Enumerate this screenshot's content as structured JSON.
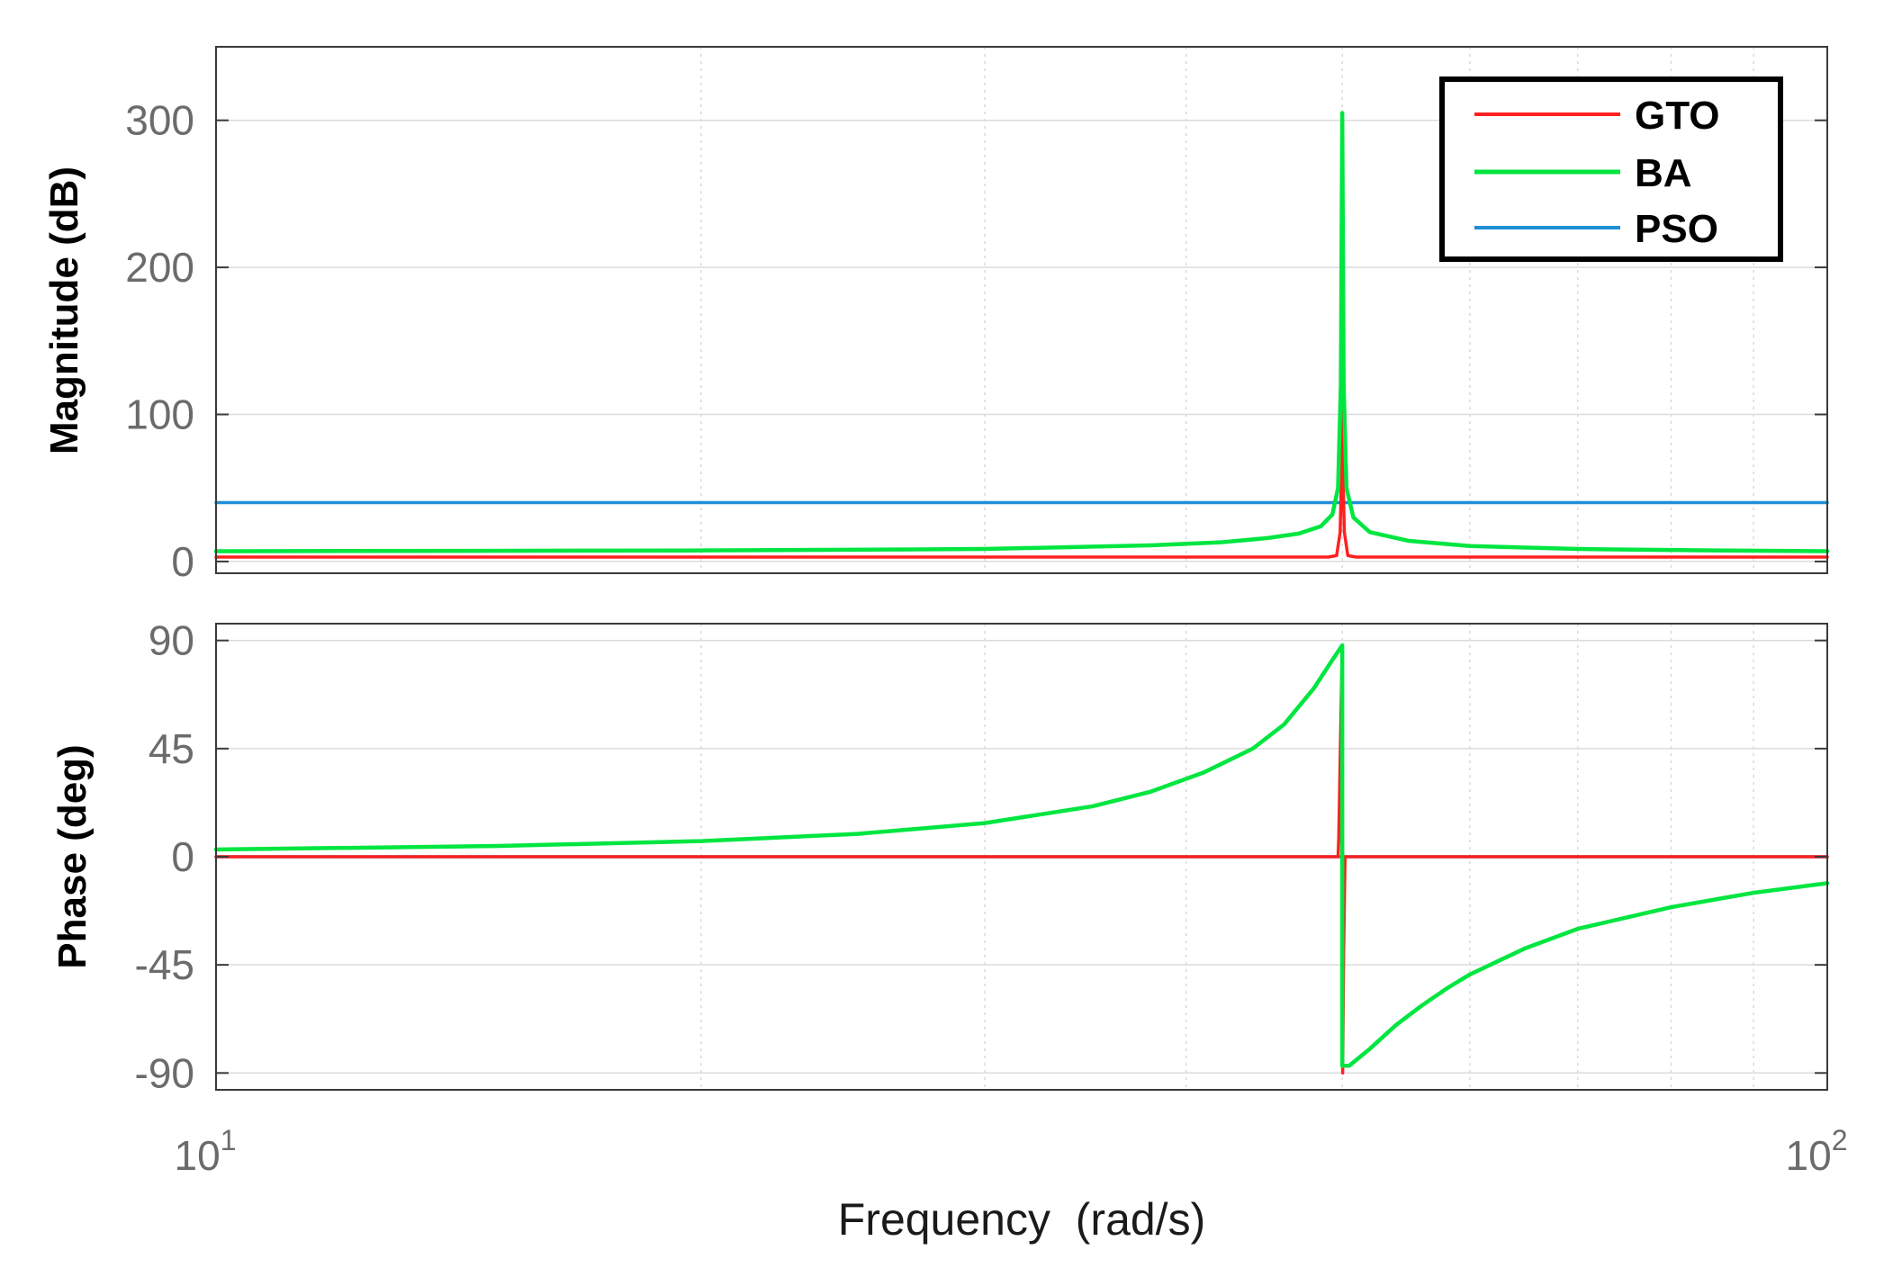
{
  "chart_data": {
    "type": "line",
    "x_scale": "log",
    "x_label": "Frequency  (rad/s)",
    "xlim": [
      10,
      100
    ],
    "x_ticks": [
      {
        "value": 10,
        "base": "10",
        "exp": "1"
      },
      {
        "value": 100,
        "base": "10",
        "exp": "2"
      }
    ],
    "grid": true,
    "legend": {
      "placement": "top-right",
      "entries": [
        {
          "name": "GTO",
          "color": "#ff2020"
        },
        {
          "name": "BA",
          "color": "#00e640"
        },
        {
          "name": "PSO",
          "color": "#1f8fd6"
        }
      ]
    },
    "panels": [
      {
        "id": "magnitude",
        "ylabel": "Magnitude (dB)",
        "ylim": [
          -8,
          350
        ],
        "yticks": [
          0,
          100,
          200,
          300
        ],
        "series": [
          {
            "name": "PSO",
            "color": "#1f8fd6",
            "points": [
              [
                10,
                40
              ],
              [
                100,
                40
              ]
            ]
          },
          {
            "name": "GTO",
            "color": "#ff2020",
            "points": [
              [
                10,
                3
              ],
              [
                49,
                3
              ],
              [
                49.6,
                4
              ],
              [
                49.85,
                20
              ],
              [
                49.95,
                60
              ],
              [
                50,
                130
              ],
              [
                50.05,
                60
              ],
              [
                50.15,
                20
              ],
              [
                50.4,
                4
              ],
              [
                51,
                3
              ],
              [
                100,
                3
              ]
            ]
          },
          {
            "name": "BA",
            "color": "#00e640",
            "points": [
              [
                10,
                7
              ],
              [
                20,
                7.5
              ],
              [
                30,
                8.5
              ],
              [
                38,
                11
              ],
              [
                42,
                13
              ],
              [
                45,
                16
              ],
              [
                47,
                19
              ],
              [
                48.5,
                24
              ],
              [
                49.3,
                32
              ],
              [
                49.7,
                50
              ],
              [
                49.9,
                120
              ],
              [
                50,
                305
              ],
              [
                50.1,
                120
              ],
              [
                50.3,
                50
              ],
              [
                50.8,
                30
              ],
              [
                52,
                20
              ],
              [
                55,
                14
              ],
              [
                60,
                10.5
              ],
              [
                70,
                8.5
              ],
              [
                85,
                7.5
              ],
              [
                100,
                7
              ]
            ]
          }
        ]
      },
      {
        "id": "phase",
        "ylabel": "Phase (deg)",
        "ylim": [
          -97,
          97
        ],
        "yticks": [
          -90,
          -45,
          0,
          45,
          90
        ],
        "series": [
          {
            "name": "PSO",
            "color": "#1f8fd6",
            "points": [
              [
                10,
                0
              ],
              [
                100,
                0
              ]
            ]
          },
          {
            "name": "GTO",
            "color": "#ff2020",
            "points": [
              [
                10,
                0
              ],
              [
                49.7,
                0
              ],
              [
                49.75,
                8
              ],
              [
                49.85,
                40
              ],
              [
                50,
                88
              ],
              [
                50.02,
                -5
              ],
              [
                50.03,
                -90
              ],
              [
                50.1,
                -40
              ],
              [
                50.2,
                0
              ],
              [
                100,
                0
              ]
            ]
          },
          {
            "name": "BA",
            "color": "#00e640",
            "points": [
              [
                10,
                3
              ],
              [
                15,
                4.5
              ],
              [
                20,
                6.5
              ],
              [
                25,
                9.5
              ],
              [
                30,
                14
              ],
              [
                35,
                21
              ],
              [
                38,
                27
              ],
              [
                41,
                35
              ],
              [
                44,
                45
              ],
              [
                46,
                55
              ],
              [
                48,
                70
              ],
              [
                49.2,
                81
              ],
              [
                50,
                88
              ],
              [
                50,
                0
              ],
              [
                50,
                -87
              ],
              [
                50.5,
                -87
              ],
              [
                52,
                -80
              ],
              [
                54,
                -70
              ],
              [
                56,
                -62
              ],
              [
                58,
                -55
              ],
              [
                60,
                -49
              ],
              [
                65,
                -38
              ],
              [
                70,
                -30
              ],
              [
                80,
                -21
              ],
              [
                90,
                -15
              ],
              [
                100,
                -11
              ]
            ]
          }
        ]
      }
    ]
  }
}
